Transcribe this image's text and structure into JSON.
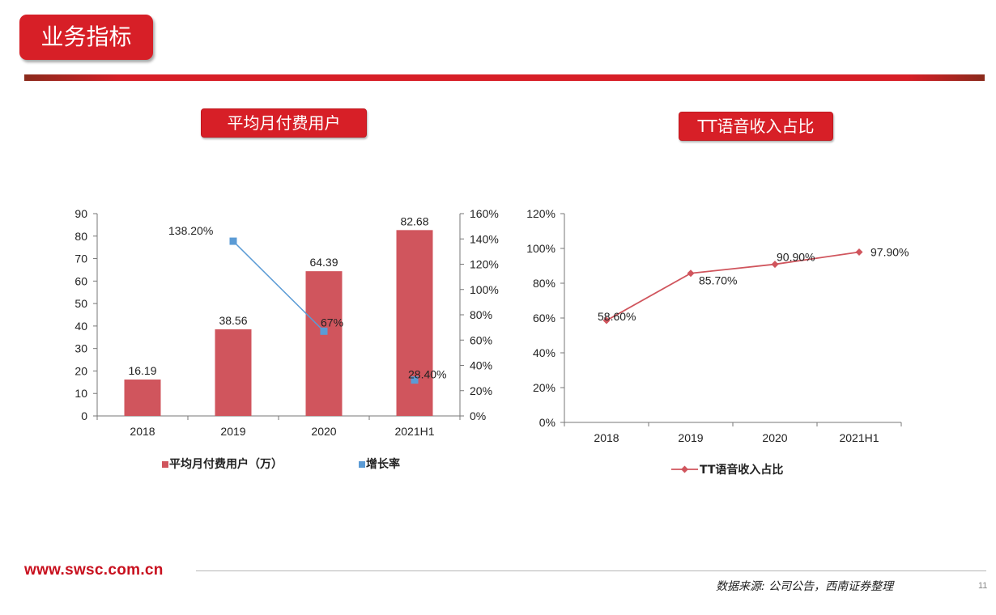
{
  "page": {
    "title": "业务指标",
    "footer_url": "www.swsc.com.cn",
    "source": "数据来源: 公司公告，西南证券整理",
    "page_number": "11"
  },
  "colors": {
    "brand_red": "#d71f27",
    "bar": "#d0555d",
    "growth_line": "#5b9bd5",
    "ratio_line": "#d0555d"
  },
  "chart_data": [
    {
      "type": "bar",
      "title": "平均月付费用户",
      "categories": [
        "2018",
        "2019",
        "2020",
        "2021H1"
      ],
      "series": [
        {
          "name": "平均月付费用户（万）",
          "type": "bar",
          "axis": "left",
          "values": [
            16.19,
            38.56,
            64.39,
            82.68
          ],
          "labels": [
            "16.19",
            "38.56",
            "64.39",
            "82.68"
          ]
        },
        {
          "name": "增长率",
          "type": "line",
          "axis": "right",
          "values": [
            null,
            138.2,
            67,
            28.4
          ],
          "labels": [
            "",
            "138.20%",
            "67%",
            "28.40%"
          ]
        }
      ],
      "ylim_left": [
        0,
        90
      ],
      "yticks_left": [
        "0",
        "10",
        "20",
        "30",
        "40",
        "50",
        "60",
        "70",
        "80",
        "90"
      ],
      "ylim_right": [
        0,
        160
      ],
      "yticks_right": [
        "0%",
        "20%",
        "40%",
        "60%",
        "80%",
        "100%",
        "120%",
        "140%",
        "160%"
      ],
      "legend": "bottom"
    },
    {
      "type": "line",
      "title": "TT语音收入占比",
      "categories": [
        "2018",
        "2019",
        "2020",
        "2021H1"
      ],
      "series": [
        {
          "name": "TT语音收入占比",
          "values": [
            58.6,
            85.7,
            90.9,
            97.9
          ],
          "labels": [
            "58.60%",
            "85.70%",
            "90.90%",
            "97.90%"
          ]
        }
      ],
      "ylim": [
        0,
        120
      ],
      "yticks": [
        "0%",
        "20%",
        "40%",
        "60%",
        "80%",
        "100%",
        "120%"
      ],
      "legend": "bottom"
    }
  ]
}
